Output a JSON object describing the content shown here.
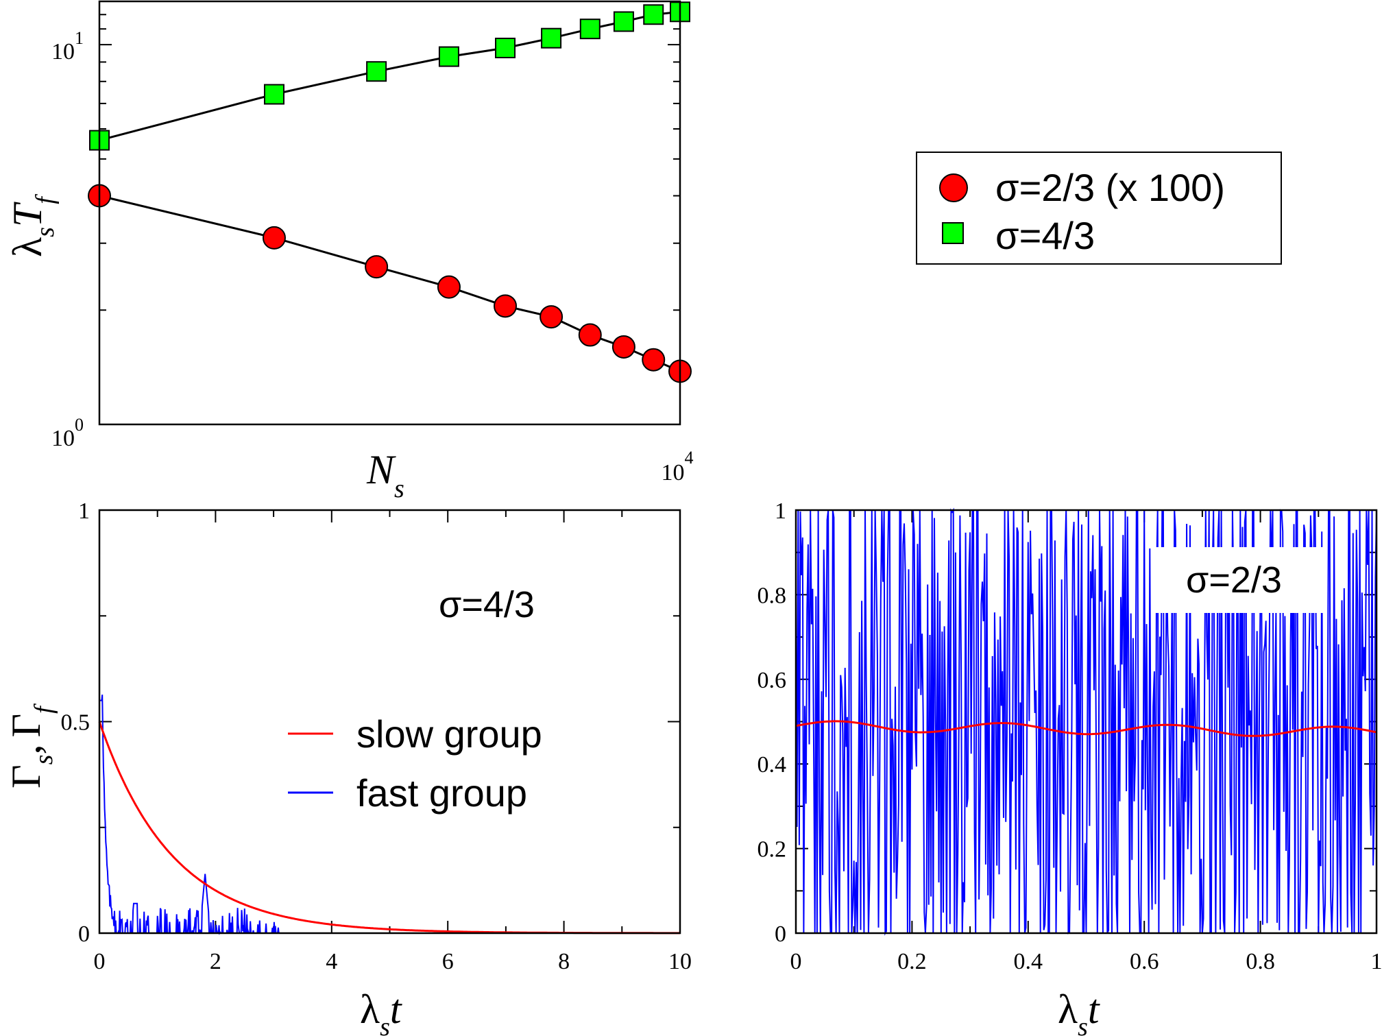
{
  "chart_data": [
    {
      "id": "top",
      "type": "scatter",
      "xscale": "log",
      "yscale": "log",
      "xlim": [
        1000,
        10000
      ],
      "ylim": [
        1,
        13
      ],
      "y_tick_labels": [
        {
          "base": "10",
          "exp": "0",
          "value": 1
        },
        {
          "base": "10",
          "exp": "1",
          "value": 10
        }
      ],
      "x_tick_labels": [
        {
          "base": "10",
          "exp": "4",
          "value": 10000
        }
      ],
      "xlabel": {
        "main": "N",
        "sub": "s"
      },
      "ylabel": {
        "main": "λ",
        "sub1": "s",
        "mid": "T",
        "sub2": "f"
      },
      "x": [
        1000,
        2000,
        3000,
        4000,
        5000,
        6000,
        7000,
        8000,
        9000,
        10000
      ],
      "series": [
        {
          "name": "σ=2/3 (x 100)",
          "marker": "circle",
          "color": "#ff0000",
          "values": [
            4.0,
            3.1,
            2.6,
            2.3,
            2.05,
            1.92,
            1.72,
            1.6,
            1.48,
            1.38
          ]
        },
        {
          "name": "σ=4/3",
          "marker": "square",
          "color": "#00ff00",
          "values": [
            5.6,
            7.4,
            8.5,
            9.3,
            9.8,
            10.4,
            11.0,
            11.5,
            12.0,
            12.2
          ]
        }
      ],
      "grid": false,
      "legend": "right"
    },
    {
      "id": "bottom-left",
      "type": "line",
      "xlim": [
        0,
        10
      ],
      "ylim": [
        0,
        1
      ],
      "x_ticks": [
        "0",
        "2",
        "4",
        "6",
        "8",
        "10"
      ],
      "y_ticks": [
        "0",
        "0.5",
        "1"
      ],
      "xlabel": {
        "main": "λ",
        "sub": "s",
        "tail": "t"
      },
      "ylabel": {
        "main1": "Γ",
        "sub1": "s",
        "comma": ",",
        "main2": "Γ",
        "sub2": "f"
      },
      "annotation": "σ=4/3",
      "series": [
        {
          "name": "slow group",
          "color": "#ff0000",
          "function": "0.5*exp(-0.8*t)"
        },
        {
          "name": "fast group",
          "color": "#0000ff",
          "function": "noisy-decay"
        }
      ],
      "grid": false,
      "legend": "center"
    },
    {
      "id": "bottom-right",
      "type": "line",
      "xlim": [
        0,
        1
      ],
      "ylim": [
        0,
        1
      ],
      "x_ticks": [
        "0",
        "0.2",
        "0.4",
        "0.6",
        "0.8",
        "1"
      ],
      "y_ticks": [
        "0",
        "0.2",
        "0.4",
        "0.6",
        "0.8",
        "1"
      ],
      "xlabel": {
        "main": "λ",
        "sub": "s",
        "tail": "t"
      },
      "annotation": "σ=2/3",
      "series": [
        {
          "color": "#ff0000",
          "level": 0.49
        },
        {
          "color": "#0000ff",
          "function": "noise-0-1"
        }
      ],
      "grid": false
    }
  ]
}
